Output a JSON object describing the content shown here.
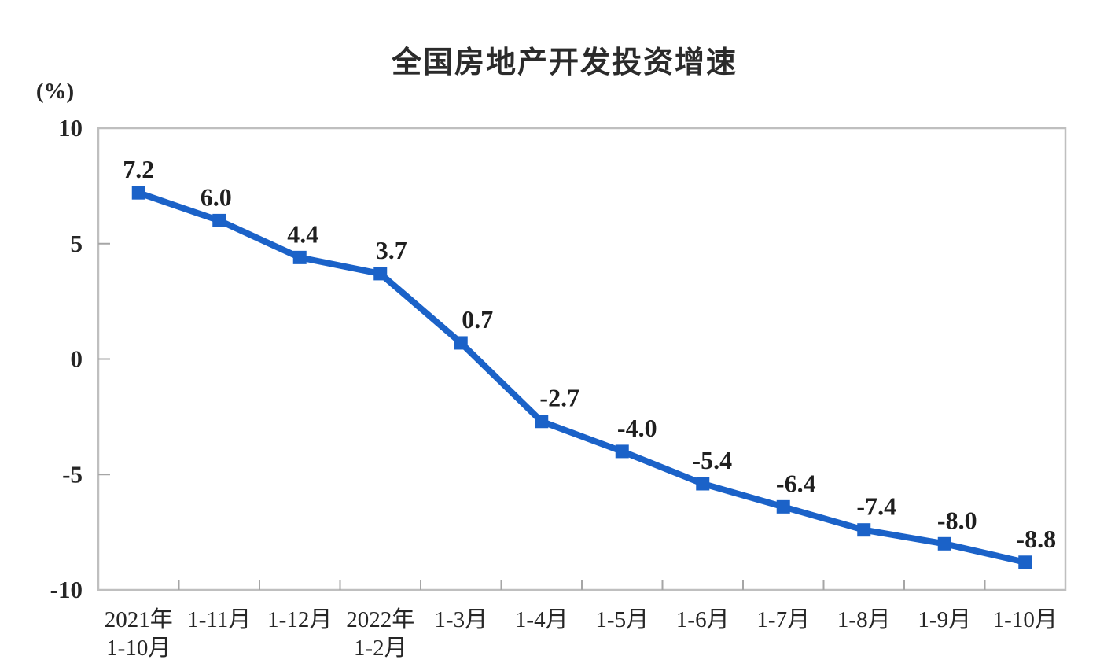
{
  "chart_data": {
    "type": "line",
    "title": "全国房地产开发投资增速",
    "ylabel": "(%)",
    "categories": [
      [
        "2021年",
        "1-10月"
      ],
      [
        "1-11月"
      ],
      [
        "1-12月"
      ],
      [
        "2022年",
        "1-2月"
      ],
      [
        "1-3月"
      ],
      [
        "1-4月"
      ],
      [
        "1-5月"
      ],
      [
        "1-6月"
      ],
      [
        "1-7月"
      ],
      [
        "1-8月"
      ],
      [
        "1-9月"
      ],
      [
        "1-10月"
      ]
    ],
    "values": [
      7.2,
      6.0,
      4.4,
      3.7,
      0.7,
      -2.7,
      -4.0,
      -5.4,
      -6.4,
      -7.4,
      -8.0,
      -8.8
    ],
    "data_labels": [
      "7.2",
      "6.0",
      "4.4",
      "3.7",
      "0.7",
      "-2.7",
      "-4.0",
      "-5.4",
      "-6.4",
      "-7.4",
      "-8.0",
      "-8.8"
    ],
    "ylim": [
      -10,
      10
    ],
    "yticks": [
      10,
      5,
      0,
      -5,
      -10
    ],
    "grid": false,
    "legend": "none",
    "marker": "square",
    "series_color": "#1b62c8",
    "label_color": "#1f1f1f",
    "axis_text_color": "#262626",
    "border_color": "#bfbfbf",
    "tick_color": "#a6a6a6",
    "background_color": "#ffffff"
  }
}
